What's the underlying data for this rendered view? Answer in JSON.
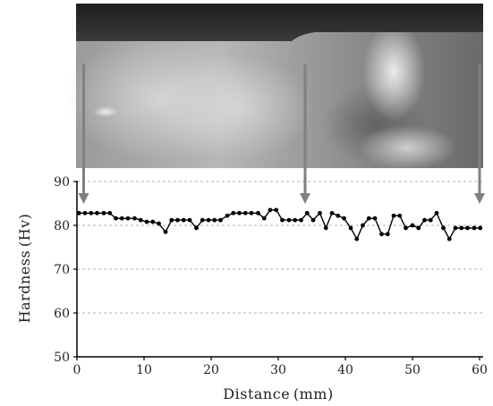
{
  "chart_data": {
    "type": "line",
    "xlabel": "Distance (mm)",
    "ylabel": "Hardness (Hv)",
    "xlim": [
      0,
      60
    ],
    "ylim": [
      50,
      90
    ],
    "x_ticks": [
      0,
      10,
      20,
      30,
      40,
      50,
      60
    ],
    "y_ticks": [
      50,
      60,
      70,
      80,
      90
    ],
    "grid": "horizontal-dashed",
    "series_color": "#000000",
    "arrow_color": "#808080",
    "arrows_x": [
      1,
      34,
      60
    ],
    "series": [
      {
        "x": [
          0.3,
          1.2,
          2.1,
          3.0,
          4.0,
          4.9,
          5.8,
          6.7,
          7.6,
          8.6,
          9.5,
          10.4,
          11.3,
          12.2,
          13.2,
          14.1,
          15.0,
          15.9,
          16.8,
          17.8,
          18.7,
          19.6,
          20.5,
          21.4,
          22.4,
          23.3,
          24.2,
          25.1,
          26.0,
          27.0,
          27.9,
          28.8,
          29.7,
          30.6,
          31.6,
          32.5,
          33.4,
          34.3,
          35.2,
          36.2,
          37.1,
          38.0,
          38.9,
          39.8,
          40.8,
          41.7,
          42.6,
          43.5,
          44.4,
          45.4,
          46.3,
          47.2,
          48.1,
          49.0,
          50.0,
          50.9,
          51.8,
          52.7,
          53.6,
          54.6,
          55.5,
          56.4,
          57.3,
          58.2,
          59.2,
          60.1
        ],
        "y": [
          82.8,
          82.8,
          82.8,
          82.8,
          82.8,
          82.8,
          81.6,
          81.6,
          81.6,
          81.6,
          81.2,
          80.8,
          80.8,
          80.4,
          78.5,
          81.2,
          81.2,
          81.2,
          81.2,
          79.4,
          81.2,
          81.2,
          81.2,
          81.2,
          82.2,
          82.8,
          82.8,
          82.8,
          82.8,
          82.8,
          81.6,
          83.5,
          83.5,
          81.2,
          81.2,
          81.2,
          81.2,
          82.8,
          81.2,
          82.8,
          79.4,
          82.8,
          82.2,
          81.6,
          79.4,
          76.9,
          80.0,
          81.6,
          81.6,
          78.0,
          78.0,
          82.2,
          82.2,
          79.4,
          80.0,
          79.4,
          81.2,
          81.2,
          82.8,
          79.4,
          76.9,
          79.4,
          79.4,
          79.4,
          79.4,
          79.4
        ]
      }
    ]
  }
}
